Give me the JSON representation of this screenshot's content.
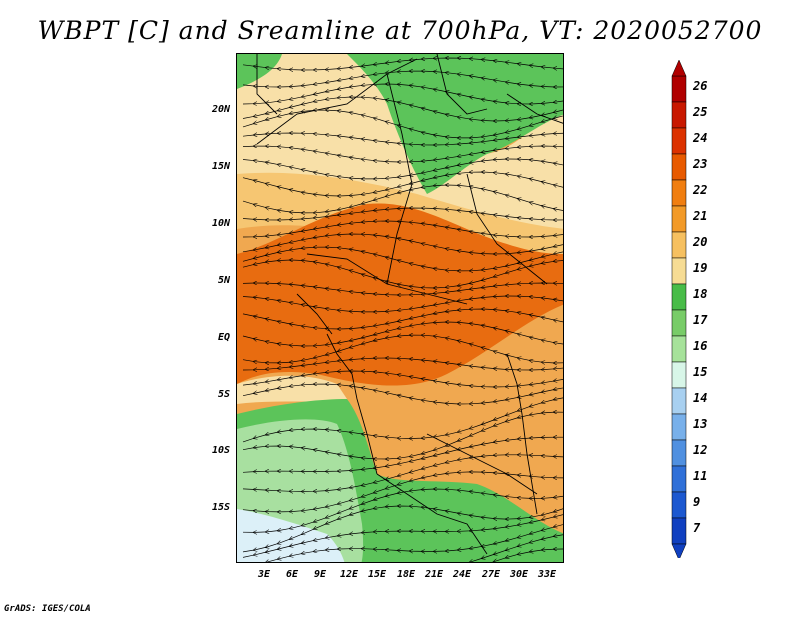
{
  "title": "WBPT [C] and Sreamline at 700hPa, VT: 2020052700",
  "footer": "GrADS: IGES/COLA",
  "lat_labels": [
    "20N",
    "15N",
    "10N",
    "5N",
    "EQ",
    "5S",
    "10S",
    "15S"
  ],
  "lon_labels": [
    "3E",
    "6E",
    "9E",
    "12E",
    "15E",
    "18E",
    "21E",
    "24E",
    "27E",
    "30E",
    "33E"
  ],
  "colorbar": {
    "levels": [
      "26",
      "25",
      "24",
      "23",
      "22",
      "21",
      "20",
      "19",
      "18",
      "17",
      "16",
      "15",
      "14",
      "13",
      "12",
      "11",
      "9",
      "7"
    ],
    "colors": [
      "#b00000",
      "#c81800",
      "#dc3200",
      "#e85a00",
      "#f07e10",
      "#f29a28",
      "#f6c060",
      "#f6dc94",
      "#48bc48",
      "#78cc68",
      "#a6e29a",
      "#d8f6e8",
      "#a8d0f0",
      "#78b0ea",
      "#5090e0",
      "#3070d8",
      "#1c58d0",
      "#1040c0"
    ]
  },
  "map_colors": {
    "deep_orange": "#e86c10",
    "orange": "#f0a850",
    "light_orange": "#f6c672",
    "cream": "#f8e0a8",
    "green": "#5cc45a",
    "light_green": "#a8e0a0",
    "pale_blue": "#dcf0f8"
  }
}
